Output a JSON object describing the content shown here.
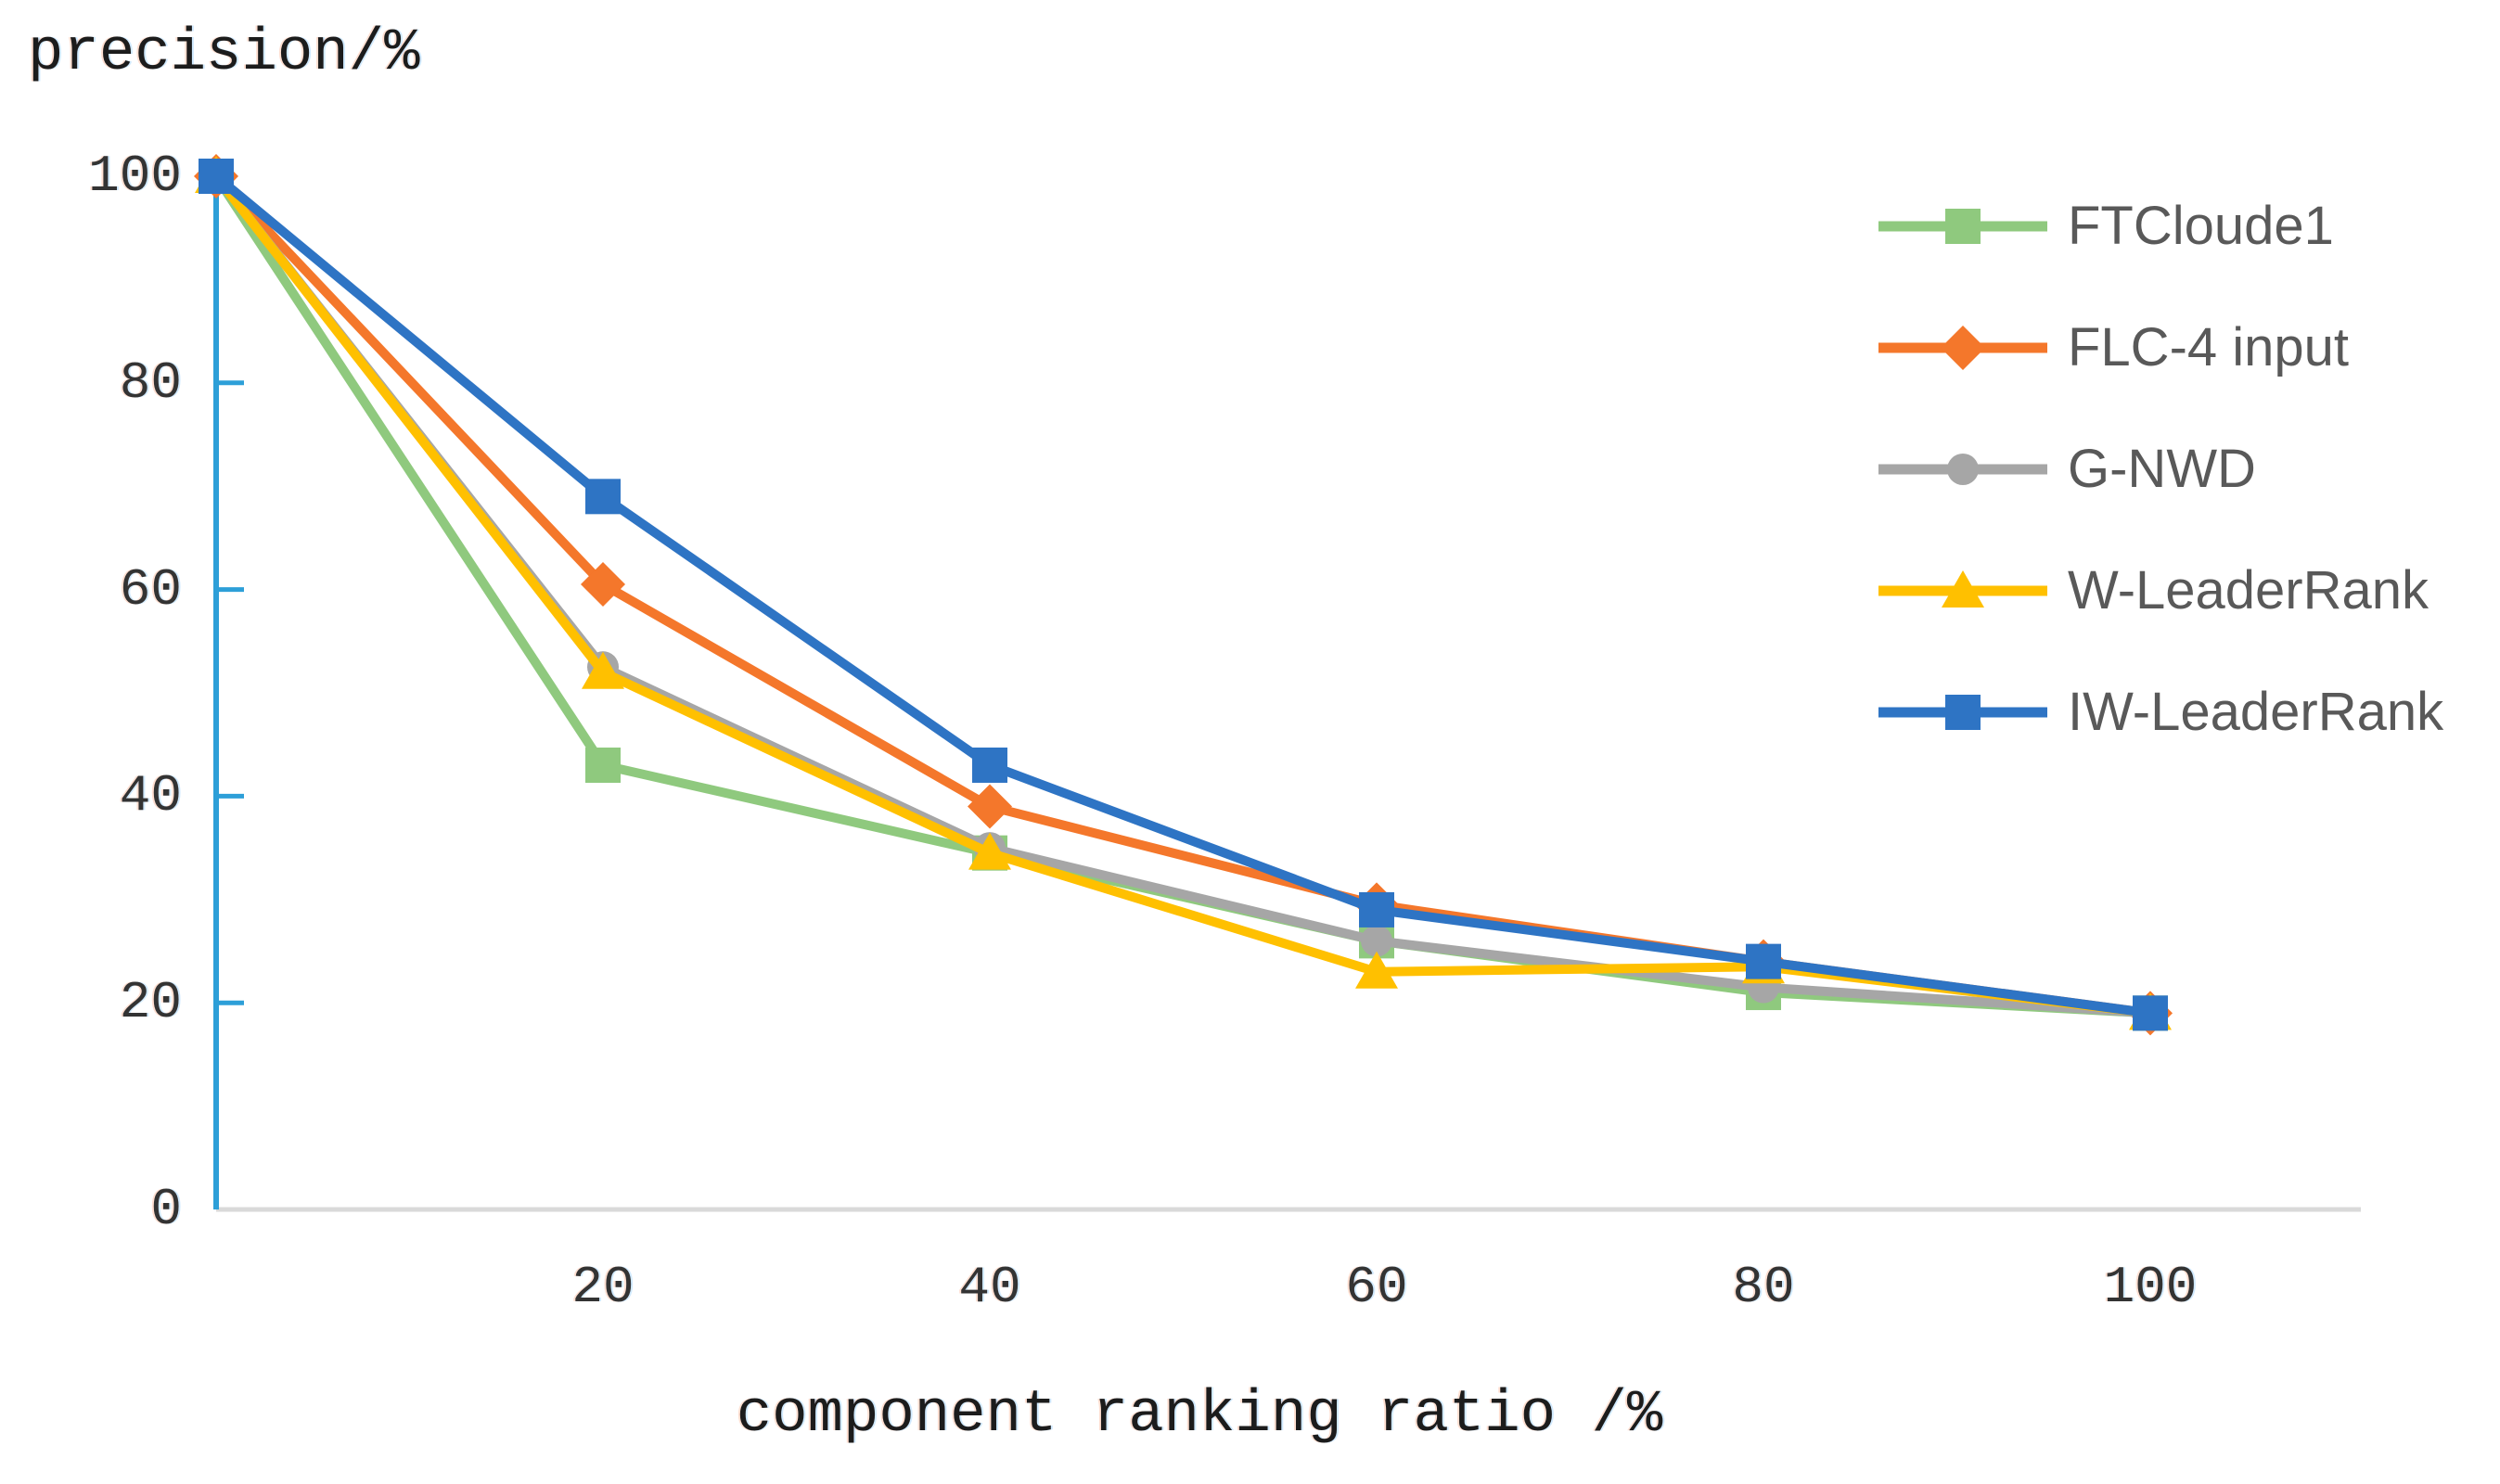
{
  "chart_data": {
    "type": "line",
    "title": "precision/%",
    "xlabel": "component ranking ratio /%",
    "ylabel": "precision/%",
    "x": [
      0,
      20,
      40,
      60,
      80,
      100
    ],
    "xlim": [
      0,
      110
    ],
    "ylim": [
      0,
      100
    ],
    "grid": false,
    "legend_position": "right",
    "x_ticks": {
      "values": [
        20,
        40,
        60,
        80,
        100
      ],
      "labels": [
        "20",
        "40",
        "60",
        "80",
        "100"
      ]
    },
    "y_ticks": {
      "values": [
        0,
        20,
        40,
        60,
        80,
        100
      ],
      "labels": [
        "0",
        "20",
        "40",
        "60",
        "80",
        "100"
      ]
    },
    "axis_colors": {
      "y_axis": "#2D9FD8",
      "x_axis": "#D9D9D9"
    },
    "text_colors": {
      "titles": "#1c1c1c",
      "ticks": "#333333",
      "legend": "#595959"
    },
    "series": [
      {
        "name": "FTCloude1",
        "color": "#8FC97E",
        "marker": "square",
        "values": [
          100,
          43,
          34.5,
          26,
          21,
          19
        ]
      },
      {
        "name": "FLC-4 input",
        "color": "#F4772B",
        "marker": "diamond",
        "values": [
          100,
          60.5,
          39,
          29.5,
          24,
          19
        ]
      },
      {
        "name": "G-NWD",
        "color": "#A6A6A6",
        "marker": "circle",
        "values": [
          100,
          52.5,
          35,
          26,
          21.5,
          19
        ]
      },
      {
        "name": "W-LeaderRank",
        "color": "#FFC000",
        "marker": "triangle",
        "values": [
          100,
          52,
          34.5,
          23,
          23.5,
          19
        ]
      },
      {
        "name": "IW-LeaderRank",
        "color": "#2E74C4",
        "marker": "square",
        "values": [
          100,
          69,
          43,
          29,
          24,
          19
        ]
      }
    ]
  }
}
